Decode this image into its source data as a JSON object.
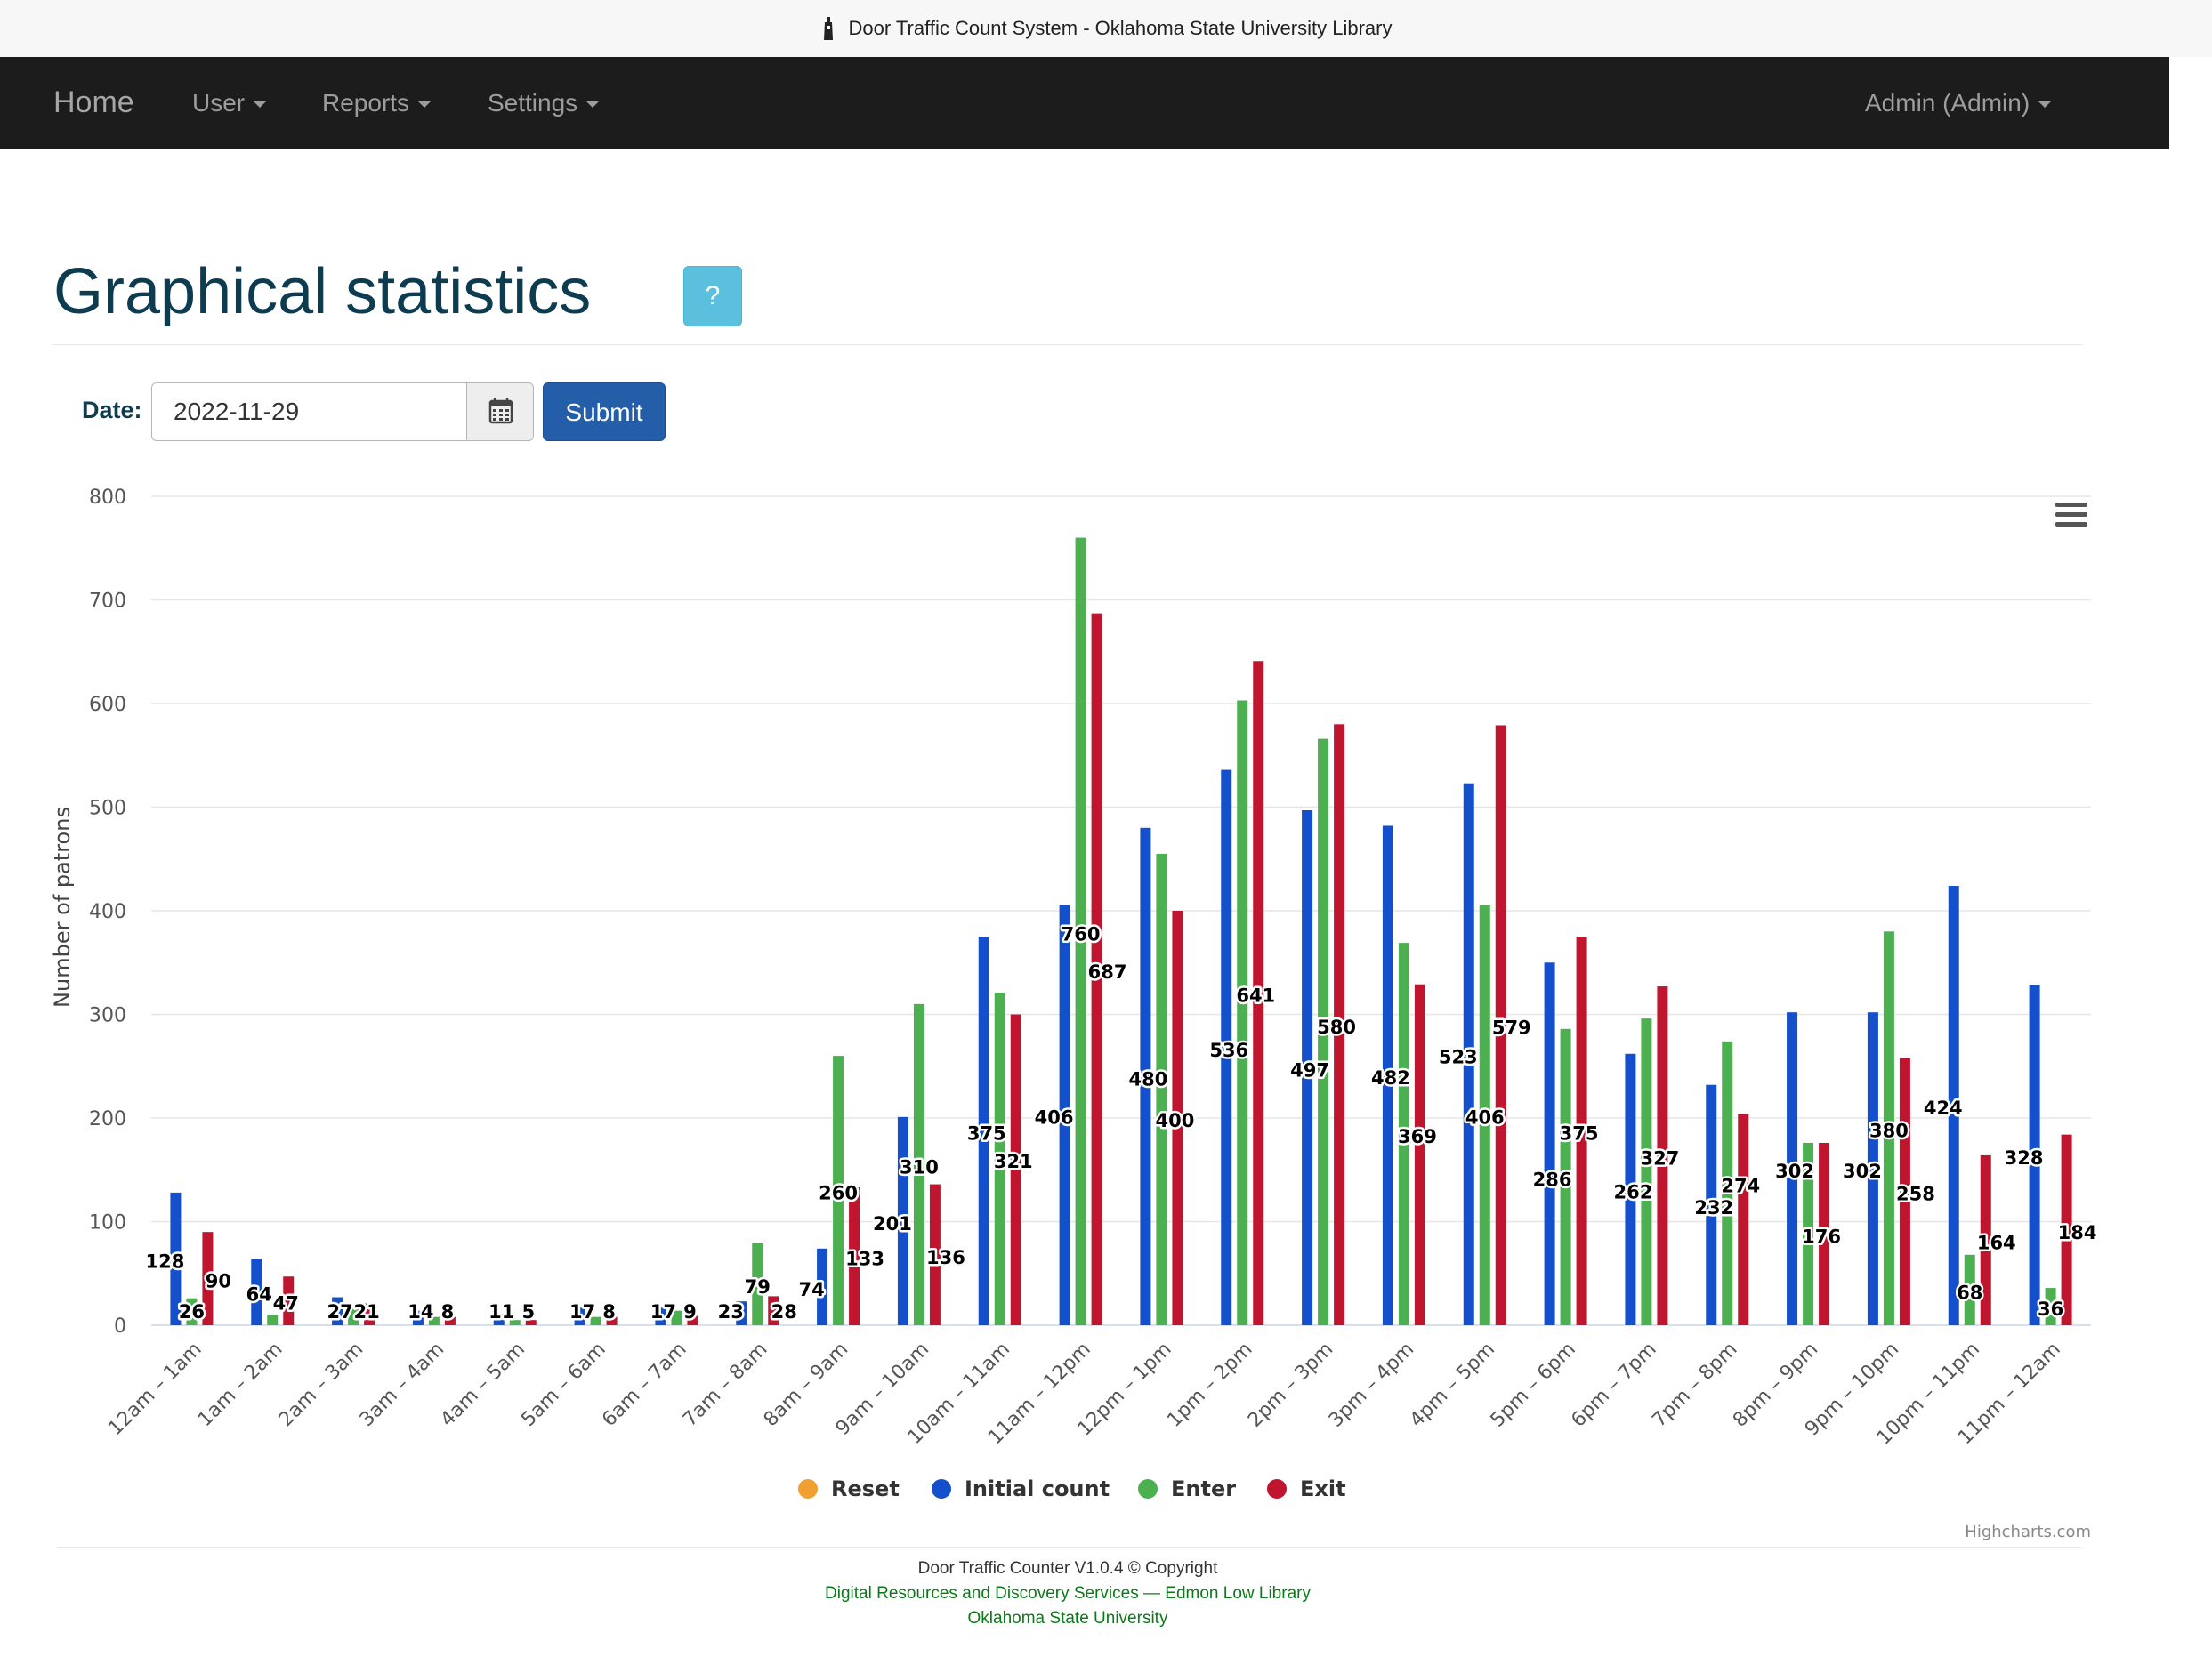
{
  "window": {
    "title": "Door Traffic Count System - Oklahoma State University Library"
  },
  "nav": {
    "brand": "Home",
    "items": [
      {
        "label": "User"
      },
      {
        "label": "Reports"
      },
      {
        "label": "Settings"
      }
    ],
    "account": "Admin (Admin)"
  },
  "page": {
    "title": "Graphical statistics",
    "help_label": "?"
  },
  "form": {
    "date_label": "Date:",
    "date_value": "2022-11-29",
    "submit_label": "Submit"
  },
  "chart_data": {
    "type": "bar",
    "title": "",
    "xlabel": "",
    "ylabel": "Number of patrons",
    "ylim": [
      0,
      800
    ],
    "yticks": [
      0,
      100,
      200,
      300,
      400,
      500,
      600,
      700,
      800
    ],
    "grid": true,
    "legend_position": "bottom-center",
    "credit": "Highcharts.com",
    "categories": [
      "12am – 1am",
      "1am – 2am",
      "2am – 3am",
      "3am – 4am",
      "4am – 5am",
      "5am – 6am",
      "6am – 7am",
      "7am – 8am",
      "8am – 9am",
      "9am – 10am",
      "10am – 11am",
      "11am – 12pm",
      "12pm – 1pm",
      "1pm – 2pm",
      "2pm – 3pm",
      "3pm – 4pm",
      "4pm – 5pm",
      "5pm – 6pm",
      "6pm – 7pm",
      "7pm – 8pm",
      "8pm – 9pm",
      "9pm – 10pm",
      "10pm – 11pm",
      "11pm – 12am"
    ],
    "series": [
      {
        "name": "Reset",
        "color": "#f0a030",
        "values": [
          0,
          0,
          0,
          0,
          0,
          0,
          0,
          0,
          0,
          0,
          0,
          0,
          0,
          0,
          0,
          0,
          0,
          0,
          0,
          0,
          0,
          0,
          0,
          0
        ]
      },
      {
        "name": "Initial count",
        "color": "#1450cc",
        "values": [
          128,
          64,
          27,
          14,
          11,
          17,
          17,
          23,
          74,
          201,
          375,
          406,
          480,
          536,
          497,
          482,
          523,
          350,
          262,
          232,
          302,
          302,
          424,
          328
        ]
      },
      {
        "name": "Enter",
        "color": "#4caf50",
        "values": [
          26,
          10,
          21,
          8,
          5,
          8,
          14,
          79,
          260,
          310,
          321,
          760,
          455,
          603,
          566,
          369,
          406,
          286,
          296,
          274,
          176,
          380,
          68,
          36
        ]
      },
      {
        "name": "Exit",
        "color": "#c0152f",
        "values": [
          90,
          47,
          21,
          8,
          5,
          8,
          9,
          28,
          133,
          136,
          300,
          687,
          400,
          641,
          580,
          329,
          579,
          375,
          327,
          204,
          176,
          258,
          164,
          184
        ]
      }
    ],
    "data_labels": [
      [
        "128",
        "26",
        "90"
      ],
      [
        "64",
        "47"
      ],
      [
        "27",
        "21"
      ],
      [
        "14",
        "8"
      ],
      [
        "11",
        "5"
      ],
      [
        "17",
        "8"
      ],
      [
        "17",
        "9"
      ],
      [
        "23",
        "79",
        "28"
      ],
      [
        "74",
        "260",
        "133"
      ],
      [
        "201",
        "310",
        "136"
      ],
      [
        "375",
        "321"
      ],
      [
        "406",
        "760",
        "687"
      ],
      [
        "480",
        "400"
      ],
      [
        "536",
        "641"
      ],
      [
        "497",
        "580"
      ],
      [
        "482",
        "369"
      ],
      [
        "523",
        "406",
        "579"
      ],
      [
        "286",
        "375"
      ],
      [
        "262",
        "327"
      ],
      [
        "232",
        "274"
      ],
      [
        "302",
        "176"
      ],
      [
        "302",
        "380",
        "258"
      ],
      [
        "424",
        "68",
        "164"
      ],
      [
        "328",
        "36",
        "184"
      ]
    ]
  },
  "footer": {
    "copyright": "Door Traffic Counter V1.0.4 © Copyright",
    "department": "Digital Resources and Discovery Services — Edmon Low Library",
    "university": "Oklahoma State University"
  },
  "icons": {
    "window": "library-tower-icon",
    "calendar": "calendar-icon",
    "menu": "hamburger-menu-icon"
  }
}
